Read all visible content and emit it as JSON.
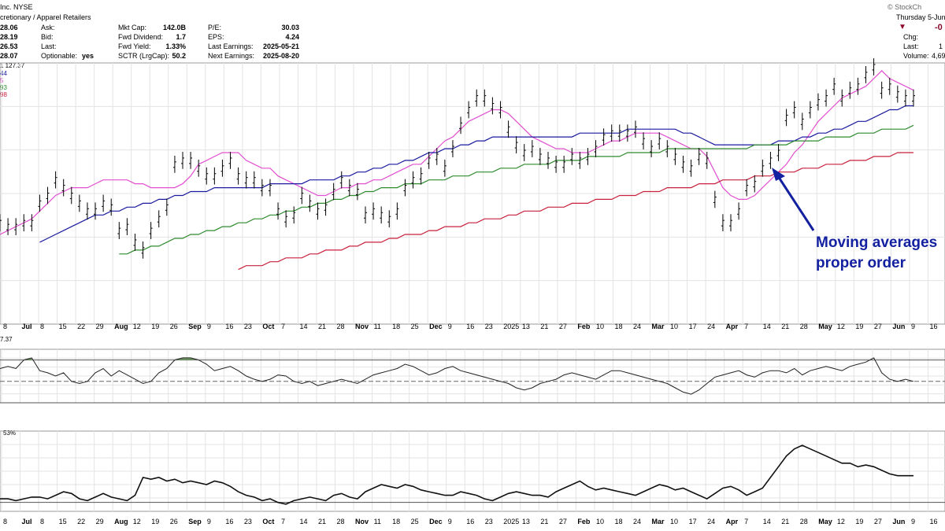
{
  "header": {
    "title": "Inc. NYSE",
    "sector": "cretionary / Apparel Retailers",
    "watermark": "© StockCh",
    "date": "Thursday 5-Jun",
    "change_value": "-0",
    "left_prices": [
      "28.06",
      "28.19",
      "26.53",
      "28.07"
    ],
    "quote_labels": [
      "Ask:",
      "Bid:",
      "Last:",
      "Optionable:"
    ],
    "optionable": "yes",
    "fund_labels": [
      "Mkt Cap:",
      "Fwd Dividend:",
      "Fwd Yield:",
      "SCTR (LrgCap):"
    ],
    "fund_values": [
      "142.0B",
      "1.7",
      "1.33%",
      "50.2"
    ],
    "ratio_labels": [
      "P/E:",
      "EPS:",
      "Last Earnings:",
      "Next Earnings:"
    ],
    "ratio_values": [
      "30.03",
      "4.24",
      "2025-05-21",
      "2025-08-20"
    ],
    "right_labels": [
      "Chg:",
      "Last:",
      "Volume:"
    ],
    "right_values": [
      "",
      "1",
      "4,69"
    ]
  },
  "legend": {
    "price_label": "1 127.37",
    "ma_values": [
      "44",
      "5",
      "93",
      "98"
    ],
    "ma_colors": [
      "#1a1aa0",
      "#e24fd0",
      "#2e8b2e",
      "#c8203c"
    ]
  },
  "annotation": {
    "line1": "Moving averages",
    "line2": "proper order",
    "color": "#1320a0"
  },
  "indicators": {
    "rsi_label": "7.37",
    "pct_label": "53%"
  },
  "chart_data": {
    "type": "line",
    "title": "",
    "x_axis_labels": [
      "8",
      "Jul",
      "8",
      "15",
      "22",
      "29",
      "Aug",
      "12",
      "19",
      "26",
      "Sep",
      "9",
      "16",
      "23",
      "Oct",
      "7",
      "14",
      "21",
      "28",
      "Nov",
      "11",
      "18",
      "25",
      "Dec",
      "9",
      "16",
      "23",
      "2025",
      "13",
      "21",
      "27",
      "Feb",
      "10",
      "18",
      "24",
      "Mar",
      "10",
      "17",
      "24",
      "Apr",
      "7",
      "14",
      "21",
      "28",
      "May",
      "12",
      "19",
      "27",
      "Jun",
      "9",
      "16"
    ],
    "series": [
      {
        "name": "price",
        "values": [
          101,
          100,
          100,
          101,
          101,
          106,
          108,
          112,
          110,
          108,
          106,
          104,
          104,
          106,
          105,
          99,
          100,
          96,
          94,
          99,
          102,
          105,
          116,
          117,
          117,
          115,
          113,
          113,
          115,
          117,
          113,
          112,
          112,
          110,
          110,
          104,
          102,
          103,
          108,
          106,
          104,
          105,
          109,
          112,
          110,
          109,
          103,
          104,
          103,
          102,
          104,
          110,
          112,
          113,
          117,
          118,
          115,
          120,
          126,
          130,
          133,
          133,
          131,
          130,
          125,
          121,
          119,
          120,
          118,
          117,
          116,
          116,
          118,
          117,
          118,
          120,
          123,
          124,
          124,
          124,
          125,
          122,
          120,
          122,
          120,
          118,
          116,
          115,
          118,
          117,
          107,
          101,
          101,
          104,
          110,
          111,
          115,
          117,
          119,
          128,
          130,
          127,
          130,
          132,
          133,
          136,
          133,
          135,
          136,
          139,
          141,
          135,
          136,
          134,
          133,
          133
        ]
      },
      {
        "name": "",
        "values": [
          98,
          99,
          100,
          101,
          102,
          104,
          106,
          108,
          109,
          110,
          110,
          110,
          111,
          112,
          112,
          112,
          112,
          111,
          111,
          110,
          110,
          110,
          110,
          111,
          113,
          116,
          117,
          118,
          119,
          119,
          119,
          117,
          116,
          115,
          115,
          113,
          112,
          111,
          110,
          109,
          108,
          108,
          109,
          110,
          110,
          111,
          111,
          112,
          112,
          113,
          114,
          115,
          116,
          116,
          118,
          120,
          122,
          123,
          125,
          127,
          128,
          129,
          130,
          130,
          129,
          127,
          125,
          123,
          122,
          121,
          120,
          120,
          119,
          119,
          119,
          120,
          121,
          122,
          122,
          123,
          124,
          124,
          124,
          124,
          123,
          122,
          121,
          120,
          120,
          118,
          114,
          110,
          108,
          107,
          107,
          108,
          110,
          112,
          114,
          116,
          119,
          121,
          124,
          127,
          129,
          131,
          133,
          134,
          135,
          136,
          138,
          140,
          138,
          137,
          136,
          135
        ]
      },
      {
        "name": "",
        "values": [
          92,
          93,
          94,
          94,
          95,
          96,
          97,
          98,
          99,
          100,
          101,
          102,
          103,
          103,
          104,
          104,
          105,
          105,
          106,
          106,
          107,
          107,
          108,
          108,
          109,
          109,
          109,
          110,
          110,
          110,
          110,
          110,
          110,
          110,
          111,
          111,
          111,
          111,
          111,
          112,
          112,
          112,
          112,
          113,
          113,
          114,
          114,
          115,
          115,
          116,
          116,
          117,
          117,
          118,
          119,
          119,
          120,
          120,
          121,
          121,
          122,
          122,
          123,
          123,
          123,
          123,
          123,
          123,
          123,
          123,
          123,
          123,
          123,
          124,
          124,
          124,
          124,
          124,
          124,
          125,
          125,
          125,
          125,
          125,
          125,
          125,
          124,
          124,
          123,
          122,
          121,
          121,
          121,
          121,
          121,
          121,
          121,
          121,
          122,
          122,
          122,
          123,
          123,
          124,
          124,
          125,
          125,
          126,
          127,
          127,
          128,
          129,
          130,
          130,
          131,
          131
        ]
      },
      {
        "name": "",
        "values": [
          84,
          85,
          85,
          86,
          86,
          87,
          88,
          88,
          89,
          89,
          90,
          90,
          91,
          91,
          92,
          93,
          93,
          94,
          94,
          95,
          95,
          96,
          97,
          97,
          98,
          98,
          99,
          99,
          100,
          100,
          101,
          101,
          102,
          102,
          103,
          103,
          104,
          104,
          105,
          105,
          106,
          106,
          107,
          107,
          108,
          108,
          109,
          109,
          110,
          110,
          110,
          111,
          111,
          111,
          112,
          112,
          112,
          113,
          113,
          113,
          114,
          114,
          114,
          115,
          115,
          115,
          116,
          116,
          116,
          116,
          117,
          117,
          117,
          117,
          118,
          118,
          118,
          118,
          118,
          119,
          119,
          119,
          119,
          119,
          120,
          120,
          120,
          120,
          120,
          120,
          120,
          120,
          120,
          120,
          120,
          121,
          121,
          121,
          121,
          121,
          122,
          122,
          122,
          122,
          123,
          123,
          123,
          123,
          124,
          124,
          124,
          125,
          125,
          125,
          125,
          126
        ]
      },
      {
        "name": "",
        "values": [
          78,
          78,
          79,
          79,
          80,
          80,
          80,
          81,
          81,
          81,
          82,
          82,
          82,
          83,
          83,
          83,
          84,
          84,
          84,
          85,
          85,
          86,
          86,
          86,
          87,
          87,
          88,
          88,
          88,
          89,
          89,
          90,
          90,
          90,
          91,
          91,
          92,
          92,
          92,
          93,
          93,
          94,
          94,
          94,
          95,
          95,
          96,
          96,
          96,
          97,
          97,
          98,
          98,
          98,
          99,
          99,
          100,
          100,
          100,
          101,
          101,
          102,
          102,
          102,
          103,
          103,
          104,
          104,
          104,
          105,
          105,
          105,
          106,
          106,
          106,
          107,
          107,
          107,
          108,
          108,
          108,
          109,
          109,
          109,
          110,
          110,
          110,
          110,
          111,
          111,
          111,
          112,
          112,
          112,
          112,
          113,
          113,
          113,
          114,
          114,
          114,
          115,
          115,
          115,
          116,
          116,
          116,
          117,
          117,
          117,
          118,
          118,
          118,
          119,
          119,
          119
        ]
      },
      {
        "name": "",
        "values": [
          62,
          64,
          62,
          70,
          72,
          60,
          58,
          55,
          58,
          50,
          48,
          50,
          58,
          62,
          55,
          60,
          56,
          52,
          48,
          50,
          58,
          62,
          70,
          72,
          72,
          70,
          66,
          60,
          62,
          64,
          60,
          55,
          52,
          50,
          52,
          56,
          55,
          50,
          48,
          50,
          46,
          48,
          50,
          52,
          50,
          48,
          52,
          56,
          58,
          60,
          62,
          66,
          64,
          60,
          56,
          58,
          62,
          64,
          60,
          58,
          56,
          54,
          52,
          50,
          48,
          44,
          42,
          44,
          48,
          50,
          52,
          56,
          58,
          56,
          54,
          52,
          56,
          60,
          60,
          58,
          56,
          54,
          52,
          50,
          48,
          44,
          40,
          38,
          42,
          48,
          54,
          56,
          58,
          60,
          56,
          54,
          58,
          60,
          60,
          58,
          62,
          56,
          60,
          62,
          64,
          62,
          60,
          64,
          66,
          68,
          72,
          58,
          52,
          50,
          52,
          50
        ]
      },
      {
        "name": "",
        "values": [
          2,
          2,
          1,
          2,
          3,
          3,
          2,
          4,
          6,
          5,
          2,
          1,
          3,
          5,
          3,
          2,
          1,
          4,
          14,
          13,
          14,
          12,
          13,
          11,
          12,
          11,
          10,
          12,
          11,
          9,
          6,
          4,
          3,
          1,
          2,
          0,
          -1,
          1,
          2,
          3,
          2,
          1,
          4,
          5,
          3,
          2,
          6,
          8,
          10,
          9,
          8,
          10,
          9,
          7,
          6,
          5,
          4,
          4,
          6,
          5,
          4,
          2,
          1,
          3,
          5,
          6,
          5,
          4,
          4,
          3,
          6,
          8,
          10,
          12,
          9,
          7,
          8,
          7,
          6,
          5,
          4,
          6,
          8,
          10,
          9,
          7,
          8,
          6,
          4,
          2,
          5,
          8,
          9,
          7,
          4,
          6,
          8,
          14,
          20,
          26,
          30,
          32,
          30,
          28,
          26,
          24,
          22,
          22,
          20,
          21,
          20,
          18,
          16,
          15,
          15,
          15
        ]
      }
    ]
  }
}
